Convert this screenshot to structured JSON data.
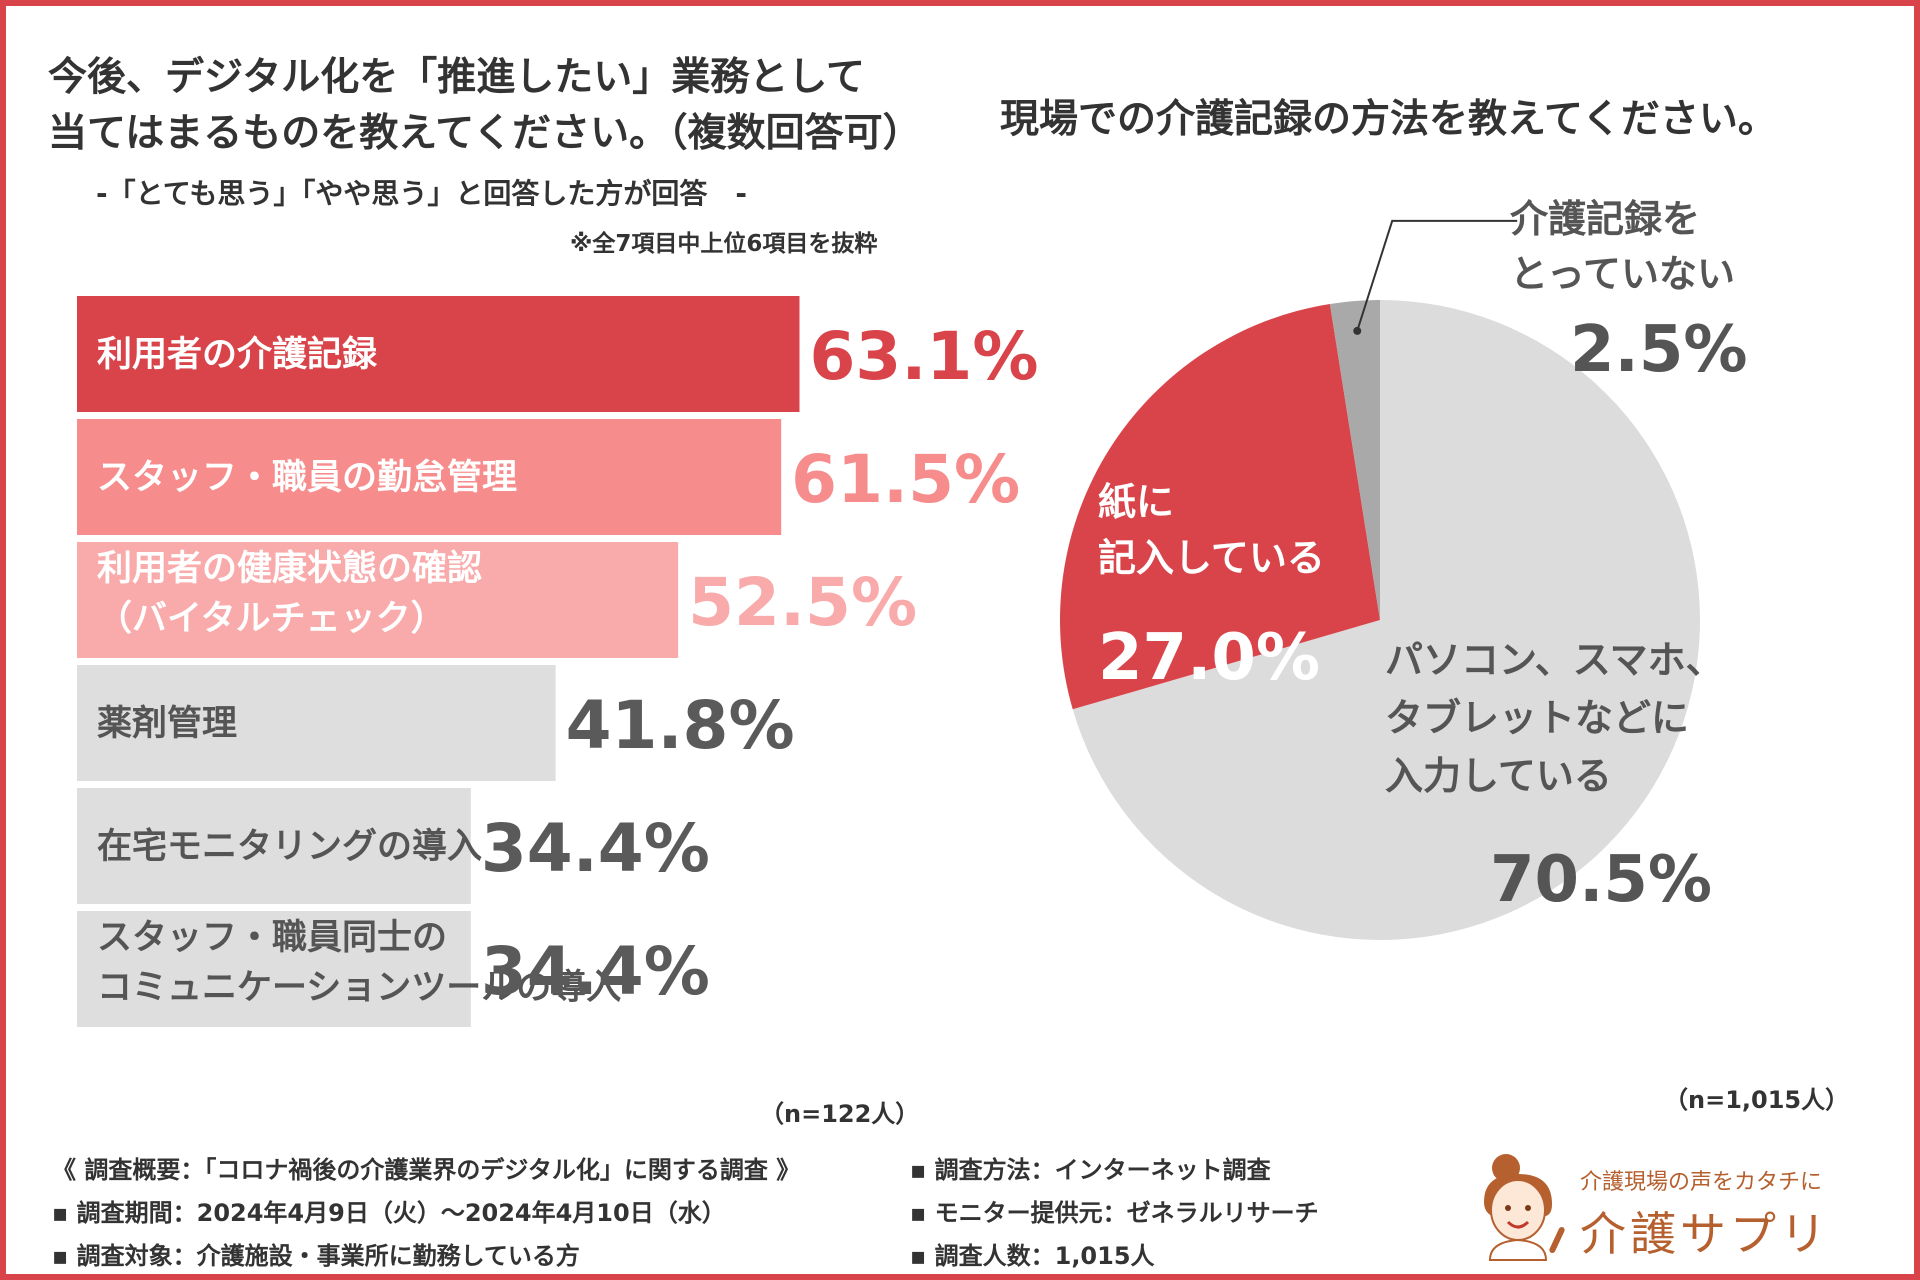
{
  "bar_section": {
    "title_line1": "今後、デジタル化を「推進したい」業務として",
    "title_line2": "当てはまるものを教えてください。（複数回答可）",
    "subtitle": "-「とても思う」「やや思う」と回答した方が回答　-",
    "note": "※全7項目中上位6項目を抜粋",
    "sample": "（n=122人）"
  },
  "pie_section": {
    "title": "現場での介護記録の方法を教えてください。",
    "sample": "（n=1,015人）"
  },
  "footer": {
    "overview": "《 調査概要：「コロナ禍後の介護業界のデジタル化」に関する調査 》",
    "period": "▪ 調査期間：2024年4月9日（火）～2024年4月10日（水）",
    "target": "▪ 調査対象：介護施設・事業所に勤務している方",
    "method": "▪ 調査方法：インターネット調査",
    "provider": "▪ モニター提供元：ゼネラルリサーチ",
    "count": "▪ 調査人数：1,015人"
  },
  "logo": {
    "tagline": "介護現場の声をカタチに",
    "name": "介護サプリ"
  },
  "chart_data": [
    {
      "type": "bar",
      "orientation": "horizontal",
      "xlim": [
        0,
        100
      ],
      "categories": [
        [
          "利用者の介護記録"
        ],
        [
          "スタッフ・職員の勤怠管理"
        ],
        [
          "利用者の健康状態の確認",
          "（バイタルチェック）"
        ],
        [
          "薬剤管理"
        ],
        [
          "在宅モニタリングの導入"
        ],
        [
          "スタッフ・職員同士の",
          "コミュニケーションツールの導入"
        ]
      ],
      "values": [
        63.1,
        61.5,
        52.5,
        41.8,
        34.4,
        34.4
      ],
      "value_labels": [
        "63.1%",
        "61.5%",
        "52.5%",
        "41.8%",
        "34.4%",
        "34.4%"
      ],
      "bar_colors": [
        "#d9444a",
        "#f78c8c",
        "#f9aaaa",
        "#dedede",
        "#dedede",
        "#dedede"
      ],
      "label_colors": [
        "#ffffff",
        "#ffffff",
        "#ffffff",
        "#555555",
        "#555555",
        "#555555"
      ],
      "value_colors": [
        "#d9444a",
        "#f78c8c",
        "#f9aaaa",
        "#5a5a5a",
        "#5a5a5a",
        "#5a5a5a"
      ]
    },
    {
      "type": "pie",
      "slices": [
        {
          "label_lines": [
            "パソコン、スマホ、",
            "タブレットなどに",
            "入力している"
          ],
          "value": 70.5,
          "value_label": "70.5%",
          "color": "#dcdcdc",
          "text_color": "#555555"
        },
        {
          "label_lines": [
            "紙に",
            "記入している"
          ],
          "value": 27.0,
          "value_label": "27.0%",
          "color": "#d9444a",
          "text_color": "#ffffff"
        },
        {
          "label_lines": [
            "介護記録を",
            "とっていない"
          ],
          "value": 2.5,
          "value_label": "2.5%",
          "color": "#a9a9a9",
          "text_color": "#555555"
        }
      ]
    }
  ]
}
